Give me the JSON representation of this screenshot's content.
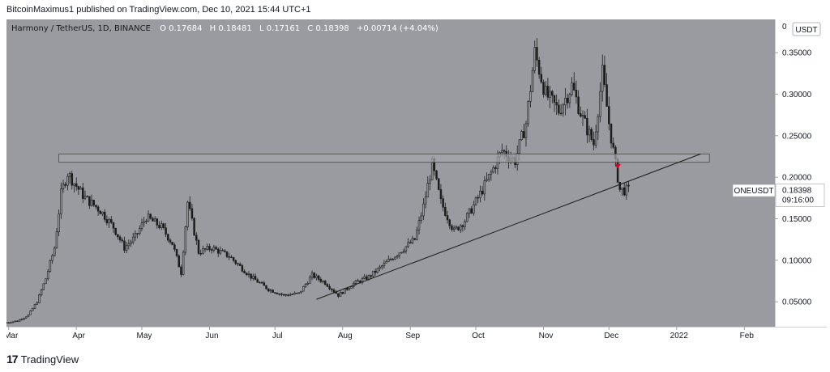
{
  "header": {
    "publish_line": "BitcoinMaximus1 published on TradingView.com, Dec 10, 2021 15:44 UTC+1"
  },
  "footer": {
    "brand": "TradingView"
  },
  "colors": {
    "plot_bg": "#999ba1",
    "candle": "#1c1c1c",
    "line": "#1a1a1a",
    "box_fill": "#a5a7ad",
    "box_stroke": "#4a4a4a",
    "marker": "#e0001b",
    "axis_text": "#131722"
  },
  "chart_data": {
    "type": "candlestick",
    "legend": {
      "symbol": "Harmony / TetherUS, 1D, BINANCE",
      "o_label": "O",
      "o_value": "0.17684",
      "h_label": "H",
      "h_value": "0.18481",
      "l_label": "L",
      "l_value": "0.17161",
      "c_label": "C",
      "c_value": "0.18398",
      "change": "+0.00714 (+4.04%)"
    },
    "y_axis": {
      "unit_label": "USDT",
      "top_label": "0",
      "ylim": [
        0.02,
        0.39
      ],
      "ticks": [
        0.35,
        0.3,
        0.25,
        0.2,
        0.15,
        0.1,
        0.05
      ],
      "tick_labels": [
        "0.35000",
        "0.30000",
        "0.25000",
        "0.20000",
        "0.15000",
        "0.10000",
        "0.05000"
      ]
    },
    "x_axis": {
      "start_date": "2021-02-28",
      "end_date": "2022-02-15",
      "ticks": [
        {
          "date": "2021-03-01",
          "label": "Mar"
        },
        {
          "date": "2021-04-01",
          "label": "Apr"
        },
        {
          "date": "2021-05-01",
          "label": "May"
        },
        {
          "date": "2021-06-01",
          "label": "Jun"
        },
        {
          "date": "2021-07-01",
          "label": "Jul"
        },
        {
          "date": "2021-08-01",
          "label": "Aug"
        },
        {
          "date": "2021-09-01",
          "label": "Sep"
        },
        {
          "date": "2021-10-01",
          "label": "Oct"
        },
        {
          "date": "2021-11-01",
          "label": "Nov"
        },
        {
          "date": "2021-12-01",
          "label": "Dec"
        },
        {
          "date": "2022-01-01",
          "label": "2022"
        },
        {
          "date": "2022-02-01",
          "label": "Feb"
        }
      ]
    },
    "price_tag": {
      "symbol": "ONEUSDT",
      "price": "0.18398",
      "countdown": "09:16:00",
      "value": 0.18398
    },
    "resistance_zone": {
      "start": "2021-03-24",
      "end": "2022-01-16",
      "low": 0.218,
      "high": 0.228
    },
    "trendline": {
      "start_date": "2021-07-20",
      "start_value": 0.053,
      "end_date": "2022-01-12",
      "end_value": 0.228
    },
    "marker": {
      "date": "2021-12-05",
      "value": 0.213
    },
    "close_series": [
      {
        "date": "2021-02-28",
        "close": 0.025
      },
      {
        "date": "2021-03-05",
        "close": 0.027
      },
      {
        "date": "2021-03-10",
        "close": 0.034
      },
      {
        "date": "2021-03-14",
        "close": 0.05
      },
      {
        "date": "2021-03-18",
        "close": 0.078
      },
      {
        "date": "2021-03-22",
        "close": 0.115
      },
      {
        "date": "2021-03-25",
        "close": 0.18
      },
      {
        "date": "2021-03-28",
        "close": 0.205
      },
      {
        "date": "2021-03-31",
        "close": 0.193
      },
      {
        "date": "2021-04-05",
        "close": 0.175
      },
      {
        "date": "2021-04-12",
        "close": 0.16
      },
      {
        "date": "2021-04-18",
        "close": 0.14
      },
      {
        "date": "2021-04-23",
        "close": 0.115
      },
      {
        "date": "2021-04-28",
        "close": 0.128
      },
      {
        "date": "2021-05-03",
        "close": 0.152
      },
      {
        "date": "2021-05-10",
        "close": 0.14
      },
      {
        "date": "2021-05-15",
        "close": 0.12
      },
      {
        "date": "2021-05-19",
        "close": 0.085
      },
      {
        "date": "2021-05-22",
        "close": 0.17
      },
      {
        "date": "2021-05-27",
        "close": 0.11
      },
      {
        "date": "2021-06-02",
        "close": 0.115
      },
      {
        "date": "2021-06-10",
        "close": 0.105
      },
      {
        "date": "2021-06-20",
        "close": 0.08
      },
      {
        "date": "2021-06-28",
        "close": 0.065
      },
      {
        "date": "2021-07-05",
        "close": 0.058
      },
      {
        "date": "2021-07-12",
        "close": 0.06
      },
      {
        "date": "2021-07-18",
        "close": 0.082
      },
      {
        "date": "2021-07-24",
        "close": 0.073
      },
      {
        "date": "2021-07-30",
        "close": 0.058
      },
      {
        "date": "2021-08-06",
        "close": 0.072
      },
      {
        "date": "2021-08-13",
        "close": 0.08
      },
      {
        "date": "2021-08-20",
        "close": 0.095
      },
      {
        "date": "2021-08-27",
        "close": 0.11
      },
      {
        "date": "2021-09-03",
        "close": 0.125
      },
      {
        "date": "2021-09-07",
        "close": 0.165
      },
      {
        "date": "2021-09-11",
        "close": 0.215
      },
      {
        "date": "2021-09-15",
        "close": 0.17
      },
      {
        "date": "2021-09-21",
        "close": 0.135
      },
      {
        "date": "2021-09-26",
        "close": 0.148
      },
      {
        "date": "2021-10-02",
        "close": 0.175
      },
      {
        "date": "2021-10-08",
        "close": 0.205
      },
      {
        "date": "2021-10-13",
        "close": 0.232
      },
      {
        "date": "2021-10-19",
        "close": 0.22
      },
      {
        "date": "2021-10-24",
        "close": 0.265
      },
      {
        "date": "2021-10-28",
        "close": 0.35
      },
      {
        "date": "2021-11-02",
        "close": 0.3
      },
      {
        "date": "2021-11-08",
        "close": 0.28
      },
      {
        "date": "2021-11-14",
        "close": 0.31
      },
      {
        "date": "2021-11-19",
        "close": 0.27
      },
      {
        "date": "2021-11-24",
        "close": 0.24
      },
      {
        "date": "2021-11-28",
        "close": 0.325
      },
      {
        "date": "2021-12-01",
        "close": 0.265
      },
      {
        "date": "2021-12-04",
        "close": 0.215
      },
      {
        "date": "2021-12-06",
        "close": 0.185
      },
      {
        "date": "2021-12-10",
        "close": 0.184
      }
    ]
  }
}
